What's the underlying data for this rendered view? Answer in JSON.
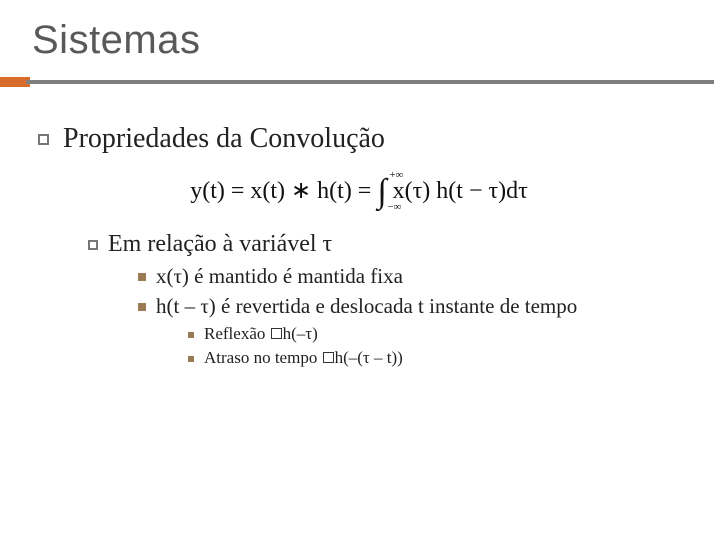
{
  "title": "Sistemas",
  "colors": {
    "title_text": "#595959",
    "body_text": "#222222",
    "rule_accent": "#d96c2b",
    "rule_gray": "#7f7f7f",
    "bullet_hollow_border": "#777777",
    "bullet_solid": "#9a7b55",
    "background": "#ffffff"
  },
  "fonts": {
    "title_family": "Arial",
    "title_size_pt": 30,
    "body_family": "Georgia",
    "l1_size_pt": 21,
    "l2_size_pt": 18,
    "l3_size_pt": 16,
    "l4_size_pt": 13
  },
  "content": {
    "l1": "Propriedades da Convolução",
    "equation": "y(t) = x(t) * h(t) = ∫ x(τ) h(t − τ) dτ",
    "equation_upper": "+∞",
    "equation_lower": "−∞",
    "l2": "Em relação à variável τ",
    "l3a": "x(τ) é mantido é mantida fixa",
    "l3b": "h(t – τ) é revertida e deslocada t instante de tempo",
    "l4a_pre": "Reflexão ",
    "l4a_post": "h(–τ)",
    "l4b_pre": "Atraso no tempo ",
    "l4b_post": "h(–(τ – t))"
  }
}
